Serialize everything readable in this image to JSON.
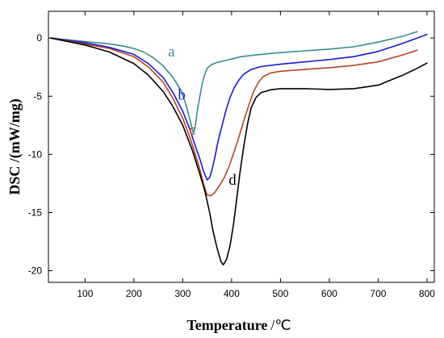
{
  "chart_data": {
    "type": "line",
    "xlabel": "Temperature",
    "xlabel_unit": "/℃",
    "ylabel": "DSC /(mW/mg)",
    "xlim": [
      25,
      815
    ],
    "ylim": [
      -21,
      2.3
    ],
    "xticks": [
      100,
      200,
      300,
      400,
      500,
      600,
      700,
      800
    ],
    "yticks": [
      0,
      -5,
      -10,
      -15,
      -20
    ],
    "grid": false,
    "legend": "none",
    "series": [
      {
        "name": "a",
        "color": "#3a8a94",
        "label_at": [
          270,
          -1.6
        ],
        "points": [
          [
            30,
            0
          ],
          [
            100,
            -0.3
          ],
          [
            150,
            -0.5
          ],
          [
            180,
            -0.7
          ],
          [
            200,
            -0.9
          ],
          [
            220,
            -1.2
          ],
          [
            240,
            -1.7
          ],
          [
            260,
            -2.4
          ],
          [
            280,
            -3.4
          ],
          [
            295,
            -4.4
          ],
          [
            305,
            -5.5
          ],
          [
            312,
            -6.6
          ],
          [
            318,
            -7.6
          ],
          [
            322,
            -8.2
          ],
          [
            326,
            -7.5
          ],
          [
            330,
            -6.2
          ],
          [
            335,
            -5.0
          ],
          [
            340,
            -3.9
          ],
          [
            345,
            -3.1
          ],
          [
            350,
            -2.6
          ],
          [
            358,
            -2.3
          ],
          [
            370,
            -2.1
          ],
          [
            390,
            -1.9
          ],
          [
            420,
            -1.6
          ],
          [
            450,
            -1.45
          ],
          [
            500,
            -1.25
          ],
          [
            550,
            -1.1
          ],
          [
            600,
            -0.95
          ],
          [
            650,
            -0.75
          ],
          [
            700,
            -0.35
          ],
          [
            750,
            0.15
          ],
          [
            780,
            0.55
          ]
        ]
      },
      {
        "name": "b",
        "color": "#1a1ad6",
        "label_at": [
          290,
          -5.3
        ],
        "points": [
          [
            30,
            0
          ],
          [
            100,
            -0.4
          ],
          [
            150,
            -0.8
          ],
          [
            200,
            -1.4
          ],
          [
            230,
            -2.2
          ],
          [
            260,
            -3.4
          ],
          [
            280,
            -4.7
          ],
          [
            300,
            -6.3
          ],
          [
            315,
            -7.9
          ],
          [
            325,
            -9.2
          ],
          [
            335,
            -10.4
          ],
          [
            343,
            -11.5
          ],
          [
            350,
            -12.2
          ],
          [
            355,
            -12.0
          ],
          [
            360,
            -11.3
          ],
          [
            366,
            -10.2
          ],
          [
            372,
            -8.9
          ],
          [
            380,
            -7.6
          ],
          [
            388,
            -6.3
          ],
          [
            396,
            -5.2
          ],
          [
            405,
            -4.3
          ],
          [
            415,
            -3.6
          ],
          [
            425,
            -3.1
          ],
          [
            440,
            -2.7
          ],
          [
            460,
            -2.45
          ],
          [
            500,
            -2.25
          ],
          [
            550,
            -2.05
          ],
          [
            600,
            -1.85
          ],
          [
            650,
            -1.6
          ],
          [
            700,
            -1.15
          ],
          [
            750,
            -0.45
          ],
          [
            800,
            0.3
          ]
        ]
      },
      {
        "name": "c",
        "color": "#b84422",
        "label_at": [
          313,
          -8.3
        ],
        "points": [
          [
            30,
            0
          ],
          [
            100,
            -0.5
          ],
          [
            150,
            -0.9
          ],
          [
            200,
            -1.6
          ],
          [
            230,
            -2.5
          ],
          [
            260,
            -3.8
          ],
          [
            280,
            -5.2
          ],
          [
            300,
            -6.9
          ],
          [
            315,
            -8.6
          ],
          [
            325,
            -9.9
          ],
          [
            335,
            -11.3
          ],
          [
            343,
            -12.6
          ],
          [
            350,
            -13.5
          ],
          [
            357,
            -13.55
          ],
          [
            365,
            -13.3
          ],
          [
            375,
            -12.7
          ],
          [
            385,
            -12.0
          ],
          [
            395,
            -11.0
          ],
          [
            405,
            -9.8
          ],
          [
            415,
            -8.5
          ],
          [
            425,
            -7.1
          ],
          [
            435,
            -5.8
          ],
          [
            445,
            -4.6
          ],
          [
            455,
            -3.8
          ],
          [
            465,
            -3.3
          ],
          [
            480,
            -3.0
          ],
          [
            500,
            -2.85
          ],
          [
            550,
            -2.7
          ],
          [
            600,
            -2.55
          ],
          [
            650,
            -2.35
          ],
          [
            700,
            -2.05
          ],
          [
            750,
            -1.45
          ],
          [
            780,
            -1.05
          ]
        ]
      },
      {
        "name": "d",
        "color": "#000000",
        "label_at": [
          394,
          -12.6
        ],
        "points": [
          [
            30,
            0
          ],
          [
            100,
            -0.6
          ],
          [
            150,
            -1.2
          ],
          [
            200,
            -2.2
          ],
          [
            230,
            -3.2
          ],
          [
            260,
            -4.6
          ],
          [
            280,
            -5.9
          ],
          [
            300,
            -7.5
          ],
          [
            320,
            -9.7
          ],
          [
            335,
            -11.7
          ],
          [
            345,
            -13.1
          ],
          [
            355,
            -15.0
          ],
          [
            362,
            -16.6
          ],
          [
            370,
            -18.0
          ],
          [
            378,
            -19.2
          ],
          [
            383,
            -19.5
          ],
          [
            390,
            -19.0
          ],
          [
            397,
            -17.8
          ],
          [
            404,
            -16.0
          ],
          [
            410,
            -14.0
          ],
          [
            417,
            -11.6
          ],
          [
            425,
            -9.3
          ],
          [
            433,
            -7.3
          ],
          [
            440,
            -6.0
          ],
          [
            450,
            -5.1
          ],
          [
            460,
            -4.7
          ],
          [
            480,
            -4.45
          ],
          [
            500,
            -4.35
          ],
          [
            550,
            -4.35
          ],
          [
            600,
            -4.42
          ],
          [
            650,
            -4.35
          ],
          [
            700,
            -4.05
          ],
          [
            750,
            -3.2
          ],
          [
            780,
            -2.6
          ],
          [
            800,
            -2.15
          ]
        ]
      }
    ]
  }
}
